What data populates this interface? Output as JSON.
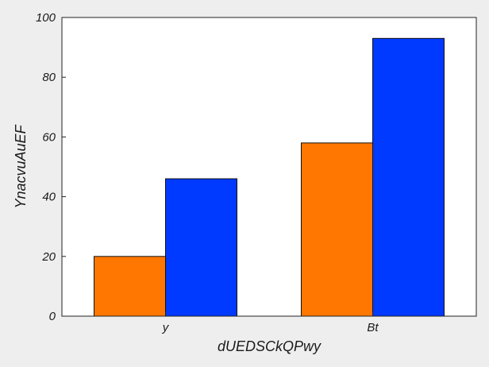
{
  "chart_data": {
    "type": "bar",
    "categories": [
      "y",
      "Bt"
    ],
    "series": [
      {
        "values": [
          20,
          58
        ],
        "color": "#ff7700"
      },
      {
        "values": [
          46,
          93
        ],
        "color": "#0039ff"
      }
    ],
    "title": "",
    "xlabel": "dUEDSCkQPwy",
    "ylabel": "YnacvuAuEF",
    "ylim": [
      0,
      100
    ],
    "yticks": [
      0,
      20,
      40,
      60,
      80,
      100
    ],
    "grid": false,
    "legend": "none"
  }
}
